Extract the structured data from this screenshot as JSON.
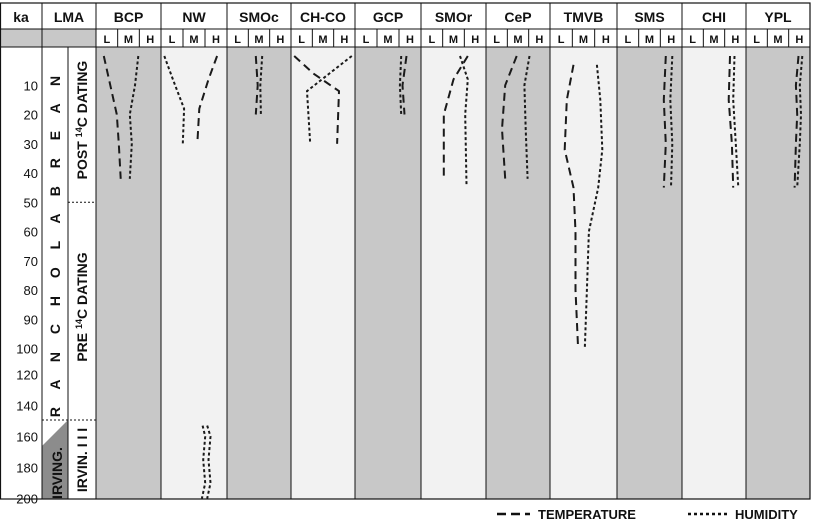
{
  "headers": {
    "ka": "ka",
    "lma": "LMA",
    "regions": [
      "BCP",
      "NW",
      "SMOc",
      "CH-CO",
      "GCP",
      "SMOr",
      "CeP",
      "TMVB",
      "SMS",
      "CHI",
      "YPL"
    ]
  },
  "subcolumns": [
    "L",
    "M",
    "H"
  ],
  "ka_ticks": [
    "10",
    "20",
    "30",
    "40",
    "50",
    "60",
    "70",
    "80",
    "90",
    "100",
    "120",
    "140",
    "160",
    "180",
    "200"
  ],
  "stages": {
    "rancholabrean": "R A N C H O L A B R E A N",
    "irvingtonian": "IRVING."
  },
  "dating": {
    "post_prefix": "POST ",
    "post_sup": "14",
    "post_suffix": "C DATING",
    "pre_prefix": "PRE ",
    "pre_sup": "14",
    "pre_suffix": "C DATING",
    "irvin": "IRVIN. I I I"
  },
  "legend": {
    "temperature": "TEMPERATURE",
    "humidity": "HUMIDITY"
  },
  "colors": {
    "shaded": "#c8c8c8",
    "light": "#f2f2f2",
    "irving_fill": "#8c8c8c",
    "line": "#1a1a1a"
  }
}
